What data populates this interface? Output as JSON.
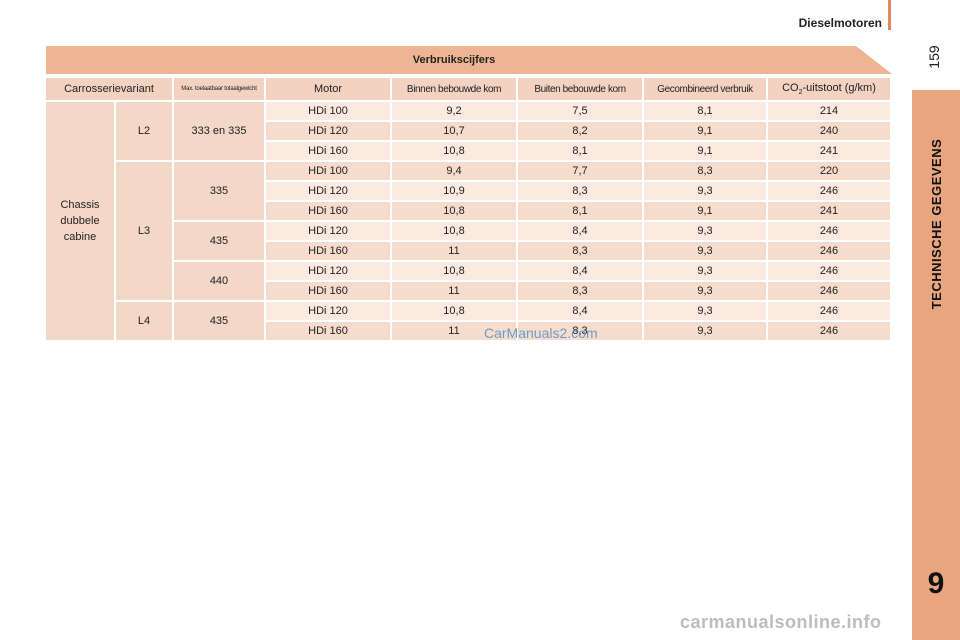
{
  "header": {
    "section_title": "Dieselmotoren",
    "page_number": "159"
  },
  "side_tab": {
    "label": "TECHNISCHE GEGEVENS",
    "chapter": "9"
  },
  "table": {
    "title": "Verbruikscijfers",
    "columns": {
      "body": "Carrosserievariant",
      "gross_weight": "Max. toelaatbaar totaalgewicht",
      "engine": "Motor",
      "urban": "Binnen bebouwde kom",
      "extra_urban": "Buiten bebouwde kom",
      "combined": "Gecombineerd verbruik",
      "co2_prefix": "CO",
      "co2_sub": "2",
      "co2_suffix": "-uitstoot (g/km)"
    },
    "body_line1": "Chassis",
    "body_line2": "dubbele",
    "body_line3": "cabine",
    "lengths": {
      "l2": "L2",
      "l3": "L3",
      "l4": "L4"
    },
    "weights": {
      "w333": "333 en 335",
      "w335": "335",
      "w435a": "435",
      "w440": "440",
      "w435b": "435"
    },
    "rows": [
      {
        "engine": "HDi 100",
        "urban": "9,2",
        "extra": "7,5",
        "combined": "8,1",
        "co2": "214"
      },
      {
        "engine": "HDi 120",
        "urban": "10,7",
        "extra": "8,2",
        "combined": "9,1",
        "co2": "240"
      },
      {
        "engine": "HDi 160",
        "urban": "10,8",
        "extra": "8,1",
        "combined": "9,1",
        "co2": "241"
      },
      {
        "engine": "HDi 100",
        "urban": "9,4",
        "extra": "7,7",
        "combined": "8,3",
        "co2": "220"
      },
      {
        "engine": "HDi 120",
        "urban": "10,9",
        "extra": "8,3",
        "combined": "9,3",
        "co2": "246"
      },
      {
        "engine": "HDi 160",
        "urban": "10,8",
        "extra": "8,1",
        "combined": "9,1",
        "co2": "241"
      },
      {
        "engine": "HDi 120",
        "urban": "10,8",
        "extra": "8,4",
        "combined": "9,3",
        "co2": "246"
      },
      {
        "engine": "HDi 160",
        "urban": "11",
        "extra": "8,3",
        "combined": "9,3",
        "co2": "246"
      },
      {
        "engine": "HDi 120",
        "urban": "10,8",
        "extra": "8,4",
        "combined": "9,3",
        "co2": "246"
      },
      {
        "engine": "HDi 160",
        "urban": "11",
        "extra": "8,3",
        "combined": "9,3",
        "co2": "246"
      },
      {
        "engine": "HDi 120",
        "urban": "10,8",
        "extra": "8,4",
        "combined": "9,3",
        "co2": "246"
      },
      {
        "engine": "HDi 160",
        "urban": "11",
        "extra": "8,3",
        "combined": "9,3",
        "co2": "246"
      }
    ]
  },
  "watermarks": {
    "top": "CarManuals2.com",
    "bottom": "carmanualsonline.info"
  },
  "colors": {
    "accent": "#e9a580",
    "header_band": "#edb592",
    "row_light": "#fbeae0",
    "row_dark": "#f6dccd"
  }
}
